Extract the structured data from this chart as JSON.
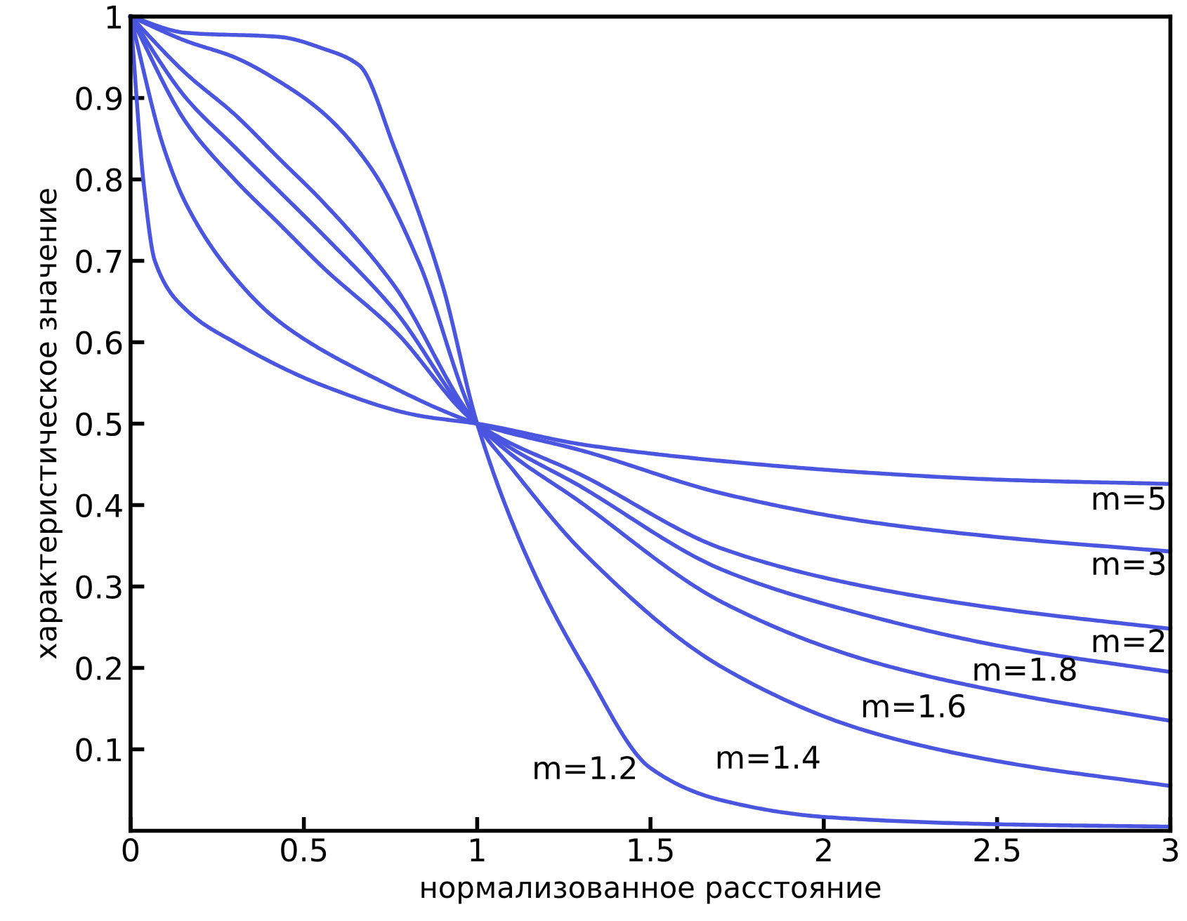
{
  "chart_data": {
    "type": "line",
    "xlabel": "нормализованное расстояние",
    "ylabel": "характеристическое значение",
    "xlim": [
      0,
      3
    ],
    "ylim": [
      0,
      1
    ],
    "xticks": [
      0,
      0.5,
      1,
      1.5,
      2,
      2.5,
      3
    ],
    "yticks": [
      0.1,
      0.2,
      0.3,
      0.4,
      0.5,
      0.6,
      0.7,
      0.8,
      0.9,
      {
        "value": 1,
        "label": "1"
      }
    ],
    "grid": false,
    "marker": "none",
    "line_style": "solid",
    "series": [
      {
        "name": "m=1.2",
        "color": "#4a55e0",
        "x": [
          0,
          0.16,
          0.43,
          0.56,
          0.66,
          0.76,
          0.9,
          1.0,
          1.15,
          1.31,
          1.5,
          1.7,
          2.0,
          2.5,
          3.0
        ],
        "values": [
          1,
          0.98,
          0.975,
          0.96,
          0.94,
          0.84,
          0.67,
          0.5,
          0.33,
          0.2,
          0.077,
          0.038,
          0.017,
          0.008,
          0.005
        ]
      },
      {
        "name": "m=1.4",
        "color": "#4a55e0",
        "x": [
          0,
          0.16,
          0.3,
          0.43,
          0.56,
          0.7,
          0.83,
          1.0,
          1.1,
          1.31,
          1.71,
          2.12,
          2.52,
          3.0
        ],
        "values": [
          1,
          0.97,
          0.95,
          0.92,
          0.88,
          0.81,
          0.7,
          0.5,
          0.445,
          0.34,
          0.2,
          0.123,
          0.084,
          0.055
        ]
      },
      {
        "color": "#4a55e0",
        "x": [
          0,
          0.16,
          0.3,
          0.43,
          0.56,
          0.76,
          1.0,
          1.31,
          1.71,
          2.12,
          2.52,
          3.0
        ],
        "name": "m=1.6",
        "values": [
          1,
          0.93,
          0.88,
          0.825,
          0.77,
          0.67,
          0.5,
          0.4,
          0.28,
          0.21,
          0.17,
          0.135
        ]
      },
      {
        "color": "#4a55e0",
        "x": [
          0,
          0.16,
          0.3,
          0.43,
          0.56,
          0.76,
          1.0,
          1.31,
          1.71,
          2.12,
          2.52,
          3.0
        ],
        "name": "m=1.8",
        "values": [
          1,
          0.9,
          0.84,
          0.785,
          0.73,
          0.64,
          0.5,
          0.42,
          0.32,
          0.265,
          0.226,
          0.195
        ]
      },
      {
        "color": "#4a55e0",
        "x": [
          0,
          0.16,
          0.3,
          0.43,
          0.56,
          0.76,
          1.0,
          1.31,
          1.71,
          2.12,
          2.52,
          3.0
        ],
        "name": "m=2",
        "values": [
          1,
          0.87,
          0.8,
          0.745,
          0.69,
          0.615,
          0.5,
          0.435,
          0.346,
          0.3,
          0.272,
          0.248
        ]
      },
      {
        "color": "#4a55e0",
        "x": [
          0,
          0.095,
          0.16,
          0.3,
          0.43,
          0.7,
          1.0,
          1.31,
          1.71,
          2.12,
          2.52,
          3.0
        ],
        "name": "m=3",
        "values": [
          1,
          0.84,
          0.77,
          0.68,
          0.625,
          0.557,
          0.5,
          0.466,
          0.414,
          0.38,
          0.36,
          0.343
        ]
      },
      {
        "color": "#4a55e0",
        "x": [
          0,
          0.04,
          0.07,
          0.16,
          0.3,
          0.56,
          0.83,
          1.0,
          1.31,
          1.71,
          2.12,
          2.52,
          3.0
        ],
        "name": "m=5",
        "values": [
          1,
          0.786,
          0.7,
          0.64,
          0.6,
          0.546,
          0.51,
          0.5,
          0.474,
          0.454,
          0.44,
          0.431,
          0.426
        ]
      }
    ]
  }
}
